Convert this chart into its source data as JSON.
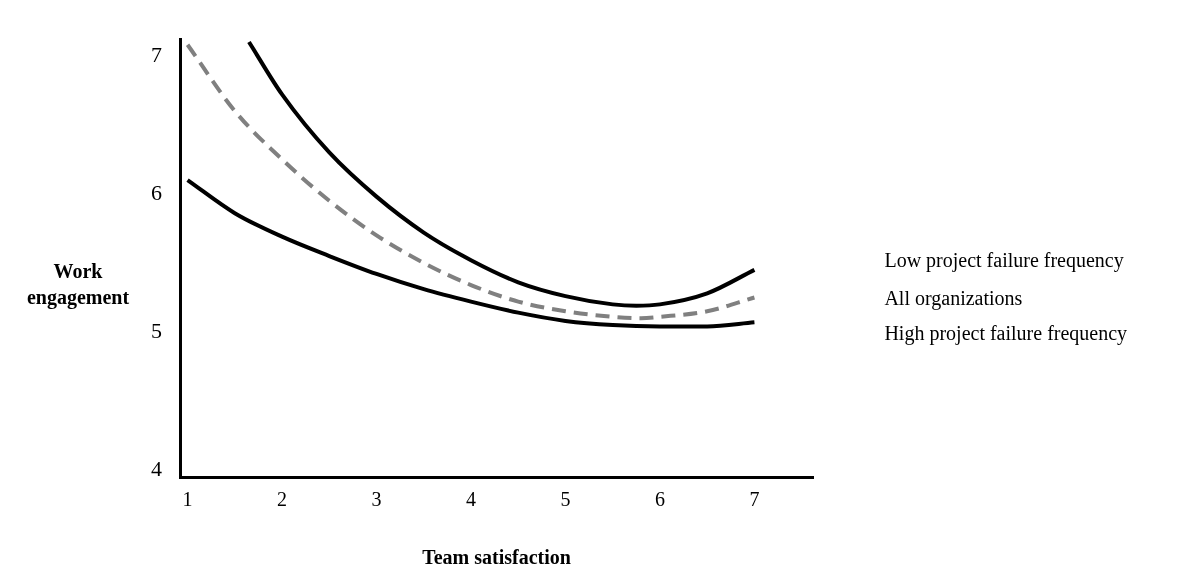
{
  "chart_data": {
    "type": "line",
    "xlabel": "Team satisfaction",
    "ylabel": "Work engagement",
    "xlim": [
      0.92,
      7.62
    ],
    "xticks": [
      1,
      2,
      3,
      4,
      5,
      6,
      7
    ],
    "ylim": [
      3.95,
      7.12
    ],
    "yticks": [
      4,
      5,
      6,
      7
    ],
    "grid": false,
    "legend": false,
    "marker": "none",
    "series": [
      {
        "name": "Low project failure frequency",
        "color": "#000000",
        "line_style": "solid",
        "x": [
          1.65,
          2,
          2.5,
          3,
          3.5,
          4,
          4.5,
          5,
          5.5,
          5.75,
          6,
          6.5,
          7
        ],
        "values": [
          7.1,
          6.72,
          6.3,
          5.98,
          5.72,
          5.52,
          5.36,
          5.26,
          5.2,
          5.19,
          5.2,
          5.28,
          5.45
        ]
      },
      {
        "name": "All organizations",
        "color": "#808080",
        "line_style": "dashed",
        "x": [
          1,
          1.5,
          2,
          2.5,
          3,
          3.5,
          4,
          4.5,
          5,
          5.5,
          5.8,
          6,
          6.5,
          7
        ],
        "values": [
          7.08,
          6.6,
          6.25,
          5.95,
          5.7,
          5.5,
          5.34,
          5.22,
          5.15,
          5.11,
          5.1,
          5.11,
          5.15,
          5.25
        ]
      },
      {
        "name": "High project failure frequency",
        "color": "#000000",
        "line_style": "solid",
        "x": [
          1,
          1.5,
          2,
          2.5,
          3,
          3.5,
          4,
          4.5,
          5,
          5.5,
          6,
          6.5,
          7
        ],
        "values": [
          6.1,
          5.86,
          5.69,
          5.55,
          5.42,
          5.31,
          5.22,
          5.14,
          5.08,
          5.05,
          5.04,
          5.04,
          5.07
        ]
      }
    ]
  }
}
